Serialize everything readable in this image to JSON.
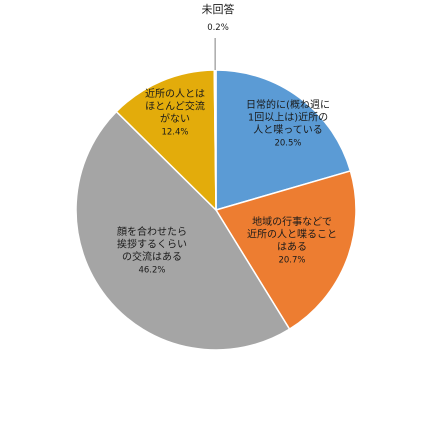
{
  "chart_data": {
    "type": "pie",
    "start": "top",
    "direction": "clockwise",
    "slices": [
      {
        "label_lines": [
          "日常的に(概ね週に",
          "1回以上は)近所の",
          "人と喋っている"
        ],
        "value": 20.5,
        "value_text": "20.5%",
        "color": "#5b9bd5"
      },
      {
        "label_lines": [
          "地域の行事などで",
          "近所の人と喋ること",
          "はある"
        ],
        "value": 20.7,
        "value_text": "20.7%",
        "color": "#ed7d31"
      },
      {
        "label_lines": [
          "顔を合わせたら",
          "挨拶するくらい",
          "の交流はある"
        ],
        "value": 46.2,
        "value_text": "46.2%",
        "color": "#a5a5a5"
      },
      {
        "label_lines": [
          "近所の人とは",
          "ほとんど交流",
          "がない"
        ],
        "value": 12.4,
        "value_text": "12.4%",
        "color": "#e3ac0b"
      },
      {
        "label_lines": [
          "未回答"
        ],
        "value": 0.2,
        "value_text": "0.2%",
        "color": "#f2f2f2"
      }
    ]
  }
}
